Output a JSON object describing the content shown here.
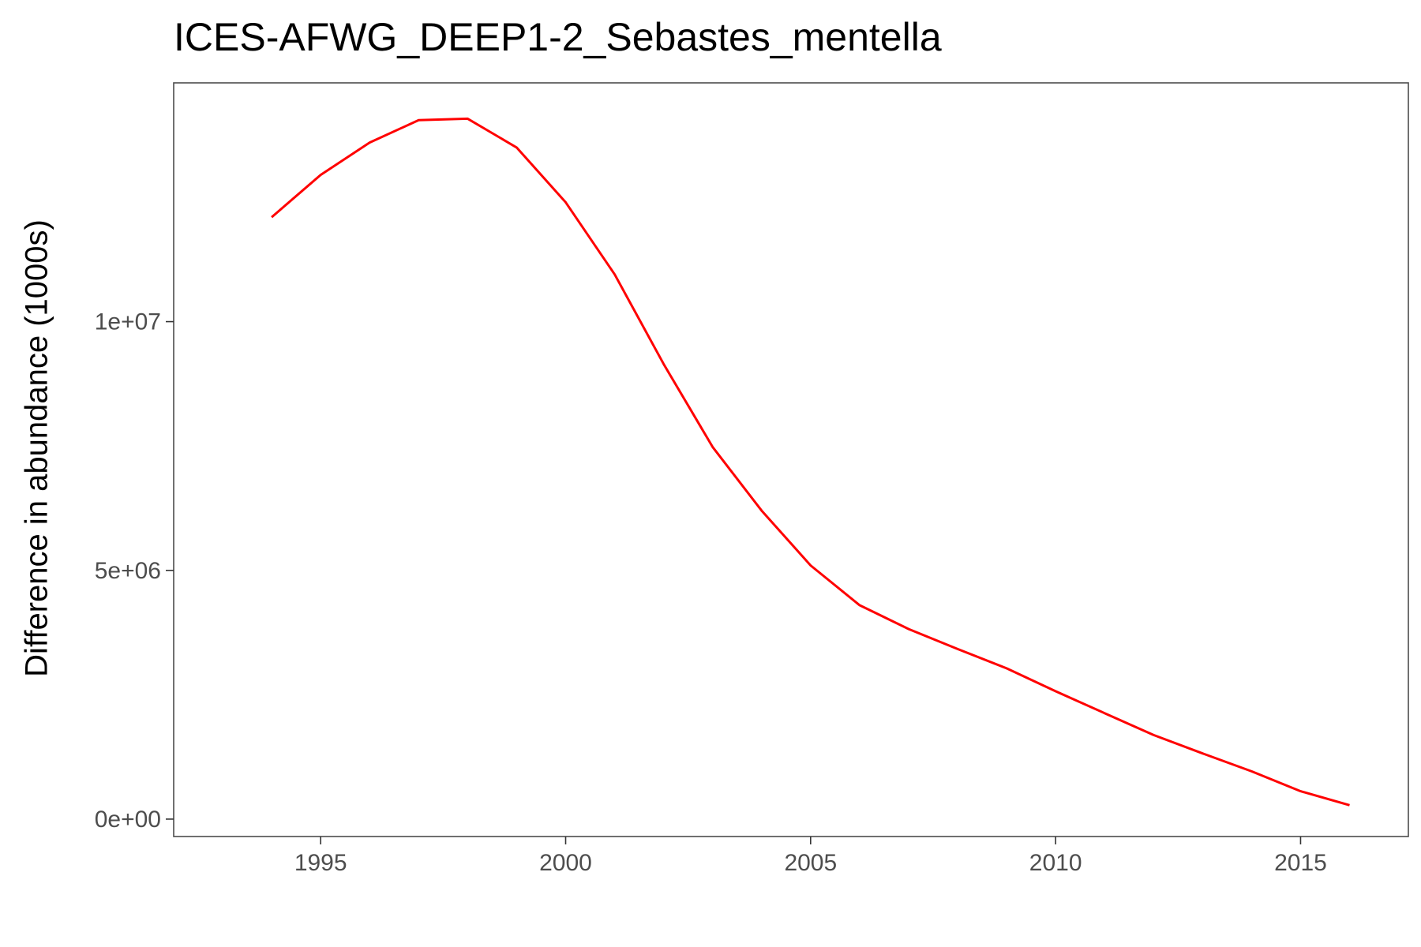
{
  "chart_data": {
    "type": "line",
    "title": "ICES-AFWG_DEEP1-2_Sebastes_mentella",
    "xlabel": "",
    "ylabel": "Difference in abundance (1000s)",
    "xlim": [
      1992.0,
      2017.2
    ],
    "ylim": [
      -350000,
      14800000
    ],
    "x_ticks": [
      1995,
      2000,
      2005,
      2010,
      2015
    ],
    "x_tick_labels": [
      "1995",
      "2000",
      "2005",
      "2010",
      "2015"
    ],
    "y_ticks": [
      0,
      5000000,
      10000000
    ],
    "y_tick_labels": [
      "0e+00",
      "5e+06",
      "1e+07"
    ],
    "grid": false,
    "series": [
      {
        "name": "",
        "color": "#ff0000",
        "x": [
          1994,
          1995,
          1996,
          1997,
          1998,
          1999,
          2000,
          2001,
          2002,
          2003,
          2004,
          2005,
          2006,
          2007,
          2008,
          2009,
          2010,
          2011,
          2012,
          2013,
          2014,
          2015,
          2016
        ],
        "values": [
          12100000,
          12950000,
          13600000,
          14050000,
          14080000,
          13500000,
          12400000,
          10950000,
          9150000,
          7480000,
          6200000,
          5100000,
          4300000,
          3820000,
          3420000,
          3030000,
          2570000,
          2130000,
          1690000,
          1320000,
          960000,
          560000,
          280000
        ]
      }
    ]
  }
}
